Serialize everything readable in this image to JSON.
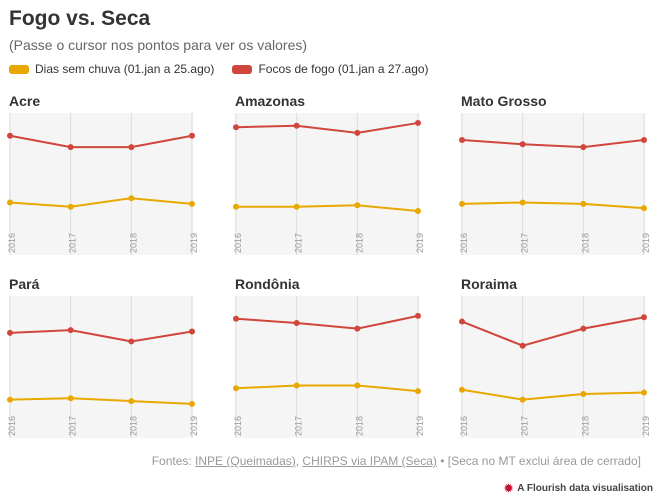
{
  "header": {
    "title": "Fogo vs. Seca",
    "subtitle": "(Passe o cursor nos pontos para ver os valores)"
  },
  "legend": [
    {
      "label": "Dias sem chuva (01.jan a 25.ago)",
      "color": "#e8a800"
    },
    {
      "label": "Focos de fogo (01.jan a 27.ago)",
      "color": "#d0463c"
    }
  ],
  "colors": {
    "plot_bg": "#f5f5f5",
    "tick": "#999999"
  },
  "chart_data": {
    "type": "line",
    "x": [
      "2016",
      "2017",
      "2018",
      "2019"
    ],
    "y_units": "indexed (no printed axis)",
    "panels": [
      {
        "name": "Acre",
        "series": [
          {
            "name": "Focos de fogo (01.jan a 27.ago)",
            "values": [
              0.84,
              0.76,
              0.76,
              0.84
            ]
          },
          {
            "name": "Dias sem chuva (01.jan a 25.ago)",
            "values": [
              0.37,
              0.34,
              0.4,
              0.36
            ]
          }
        ]
      },
      {
        "name": "Amazonas",
        "series": [
          {
            "name": "Focos de fogo (01.jan a 27.ago)",
            "values": [
              0.9,
              0.91,
              0.86,
              0.93
            ]
          },
          {
            "name": "Dias sem chuva (01.jan a 25.ago)",
            "values": [
              0.34,
              0.34,
              0.35,
              0.31
            ]
          }
        ]
      },
      {
        "name": "Mato Grosso",
        "series": [
          {
            "name": "Focos de fogo (01.jan a 27.ago)",
            "values": [
              0.81,
              0.78,
              0.76,
              0.81
            ]
          },
          {
            "name": "Dias sem chuva (01.jan a 25.ago)",
            "values": [
              0.36,
              0.37,
              0.36,
              0.33
            ]
          }
        ]
      },
      {
        "name": "Pará",
        "series": [
          {
            "name": "Focos de fogo (01.jan a 27.ago)",
            "values": [
              0.74,
              0.76,
              0.68,
              0.75
            ]
          },
          {
            "name": "Dias sem chuva (01.jan a 25.ago)",
            "values": [
              0.27,
              0.28,
              0.26,
              0.24
            ]
          }
        ]
      },
      {
        "name": "Rondônia",
        "series": [
          {
            "name": "Focos de fogo (01.jan a 27.ago)",
            "values": [
              0.84,
              0.81,
              0.77,
              0.86
            ]
          },
          {
            "name": "Dias sem chuva (01.jan a 25.ago)",
            "values": [
              0.35,
              0.37,
              0.37,
              0.33
            ]
          }
        ]
      },
      {
        "name": "Roraima",
        "series": [
          {
            "name": "Focos de fogo (01.jan a 27.ago)",
            "values": [
              0.82,
              0.65,
              0.77,
              0.85
            ]
          },
          {
            "name": "Dias sem chuva (01.jan a 25.ago)",
            "values": [
              0.34,
              0.27,
              0.31,
              0.32
            ]
          }
        ]
      }
    ]
  },
  "footer": {
    "prefix": "Fontes: ",
    "source1": "INPE (Queimadas)",
    "sep1": ", ",
    "source2": "CHIRPS via IPAM (Seca)",
    "suffix": " • [Seca no MT exclui área de cerrado]",
    "credit": "A Flourish data visualisation"
  }
}
